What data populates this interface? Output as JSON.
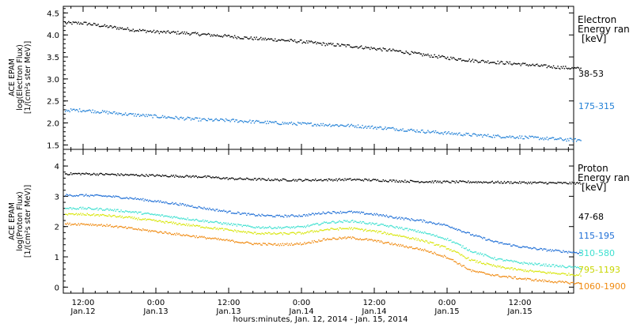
{
  "chart_data": [
    {
      "type": "scatter",
      "panel": "electron",
      "ylabel_lines": [
        "ACE EPAM",
        "log(Electron Flux)",
        "[1/(cm²s ster MeV)]"
      ],
      "ylim": [
        1.4,
        4.65
      ],
      "yticks": [
        "1.5",
        "2.0",
        "2.5",
        "3.0",
        "3.5",
        "4.0",
        "4.5"
      ],
      "ytick_values": [
        1.5,
        2.0,
        2.5,
        3.0,
        3.5,
        4.0,
        4.5
      ],
      "legend_title": [
        "Electron",
        "Energy ran",
        "[keV]"
      ],
      "x_end_hours": 82,
      "series": [
        {
          "name": "38-53",
          "color": "#000000",
          "x": [
            0,
            4,
            8,
            12,
            16,
            20,
            24,
            28,
            32,
            36,
            40,
            44,
            48,
            52,
            56,
            60,
            64,
            68,
            72,
            76,
            80,
            82
          ],
          "values": [
            4.28,
            4.2,
            4.13,
            4.08,
            4.06,
            4.02,
            3.98,
            3.93,
            3.9,
            3.86,
            3.8,
            3.76,
            3.7,
            3.64,
            3.56,
            3.49,
            3.43,
            3.39,
            3.35,
            3.3,
            3.26,
            3.24
          ]
        },
        {
          "name": "175-315",
          "color": "#1f7fd6",
          "x": [
            0,
            4,
            8,
            12,
            16,
            20,
            24,
            28,
            32,
            36,
            40,
            44,
            48,
            52,
            56,
            60,
            64,
            68,
            72,
            76,
            80,
            82
          ],
          "values": [
            2.3,
            2.25,
            2.2,
            2.16,
            2.12,
            2.08,
            2.07,
            2.04,
            2.01,
            1.99,
            1.97,
            1.95,
            1.91,
            1.87,
            1.82,
            1.78,
            1.74,
            1.71,
            1.69,
            1.66,
            1.63,
            1.62
          ]
        }
      ]
    },
    {
      "type": "scatter",
      "panel": "proton",
      "ylabel_lines": [
        "ACE EPAM",
        "log(Proton Flux)",
        "[1/(cm²s ster MeV)]"
      ],
      "ylim": [
        -0.2,
        4.55
      ],
      "yticks": [
        "0",
        "1",
        "2",
        "3",
        "4"
      ],
      "ytick_values": [
        0,
        1,
        2,
        3,
        4
      ],
      "legend_title": [
        "Proton",
        "Energy ran",
        "[keV]"
      ],
      "x_end_hours": 82,
      "series": [
        {
          "name": "47-68",
          "color": "#000000",
          "x": [
            0,
            4,
            8,
            12,
            16,
            20,
            24,
            28,
            32,
            36,
            40,
            44,
            48,
            52,
            56,
            60,
            64,
            68,
            72,
            76,
            80,
            82
          ],
          "values": [
            3.76,
            3.74,
            3.72,
            3.7,
            3.68,
            3.66,
            3.6,
            3.58,
            3.56,
            3.55,
            3.56,
            3.57,
            3.55,
            3.52,
            3.5,
            3.49,
            3.49,
            3.48,
            3.47,
            3.46,
            3.45,
            3.45
          ]
        },
        {
          "name": "115-195",
          "color": "#1f6fd6",
          "x": [
            0,
            4,
            8,
            12,
            16,
            20,
            24,
            28,
            32,
            36,
            40,
            44,
            48,
            52,
            56,
            60,
            64,
            68,
            72,
            76,
            80,
            82
          ],
          "values": [
            3.05,
            3.02,
            2.95,
            2.85,
            2.75,
            2.62,
            2.5,
            2.4,
            2.36,
            2.38,
            2.48,
            2.5,
            2.42,
            2.3,
            2.2,
            2.05,
            1.75,
            1.5,
            1.35,
            1.25,
            1.18,
            1.15
          ]
        },
        {
          "name": "310-580",
          "color": "#3ee0d0",
          "x": [
            0,
            4,
            8,
            12,
            16,
            20,
            24,
            28,
            32,
            36,
            40,
            44,
            48,
            52,
            56,
            60,
            64,
            68,
            72,
            76,
            80,
            82
          ],
          "values": [
            2.62,
            2.58,
            2.5,
            2.4,
            2.3,
            2.2,
            2.1,
            2.0,
            1.98,
            2.0,
            2.15,
            2.2,
            2.1,
            1.98,
            1.82,
            1.6,
            1.2,
            0.95,
            0.82,
            0.75,
            0.68,
            0.65
          ]
        },
        {
          "name": "795-1193",
          "color": "#d8e60a",
          "x": [
            0,
            4,
            8,
            12,
            16,
            20,
            24,
            28,
            32,
            36,
            40,
            44,
            48,
            52,
            56,
            60,
            64,
            68,
            72,
            76,
            80,
            82
          ],
          "values": [
            2.42,
            2.38,
            2.3,
            2.2,
            2.1,
            2.0,
            1.9,
            1.8,
            1.78,
            1.8,
            1.92,
            1.96,
            1.86,
            1.72,
            1.55,
            1.3,
            0.9,
            0.7,
            0.58,
            0.5,
            0.44,
            0.42
          ]
        },
        {
          "name": "1060-1900",
          "color": "#f08a10",
          "x": [
            0,
            4,
            8,
            12,
            16,
            20,
            24,
            28,
            32,
            36,
            40,
            44,
            48,
            52,
            56,
            60,
            64,
            68,
            72,
            76,
            80,
            82
          ],
          "values": [
            2.1,
            2.05,
            1.95,
            1.85,
            1.75,
            1.65,
            1.55,
            1.45,
            1.42,
            1.45,
            1.6,
            1.65,
            1.55,
            1.4,
            1.25,
            1.0,
            0.55,
            0.4,
            0.3,
            0.22,
            0.16,
            0.14
          ]
        }
      ]
    }
  ],
  "x_axis": {
    "time_labels": [
      "12:00",
      "0:00",
      "12:00",
      "0:00",
      "12:00",
      "0:00",
      "12:00"
    ],
    "date_labels": [
      "Jan.12",
      "Jan.13",
      "Jan.13",
      "Jan.14",
      "Jan.14",
      "Jan.15",
      "Jan.15"
    ],
    "tick_hours": [
      0,
      12,
      24,
      36,
      48,
      60,
      72
    ],
    "xlabel": "hours:minutes, Jan. 12, 2014 - Jan. 15, 2014"
  }
}
